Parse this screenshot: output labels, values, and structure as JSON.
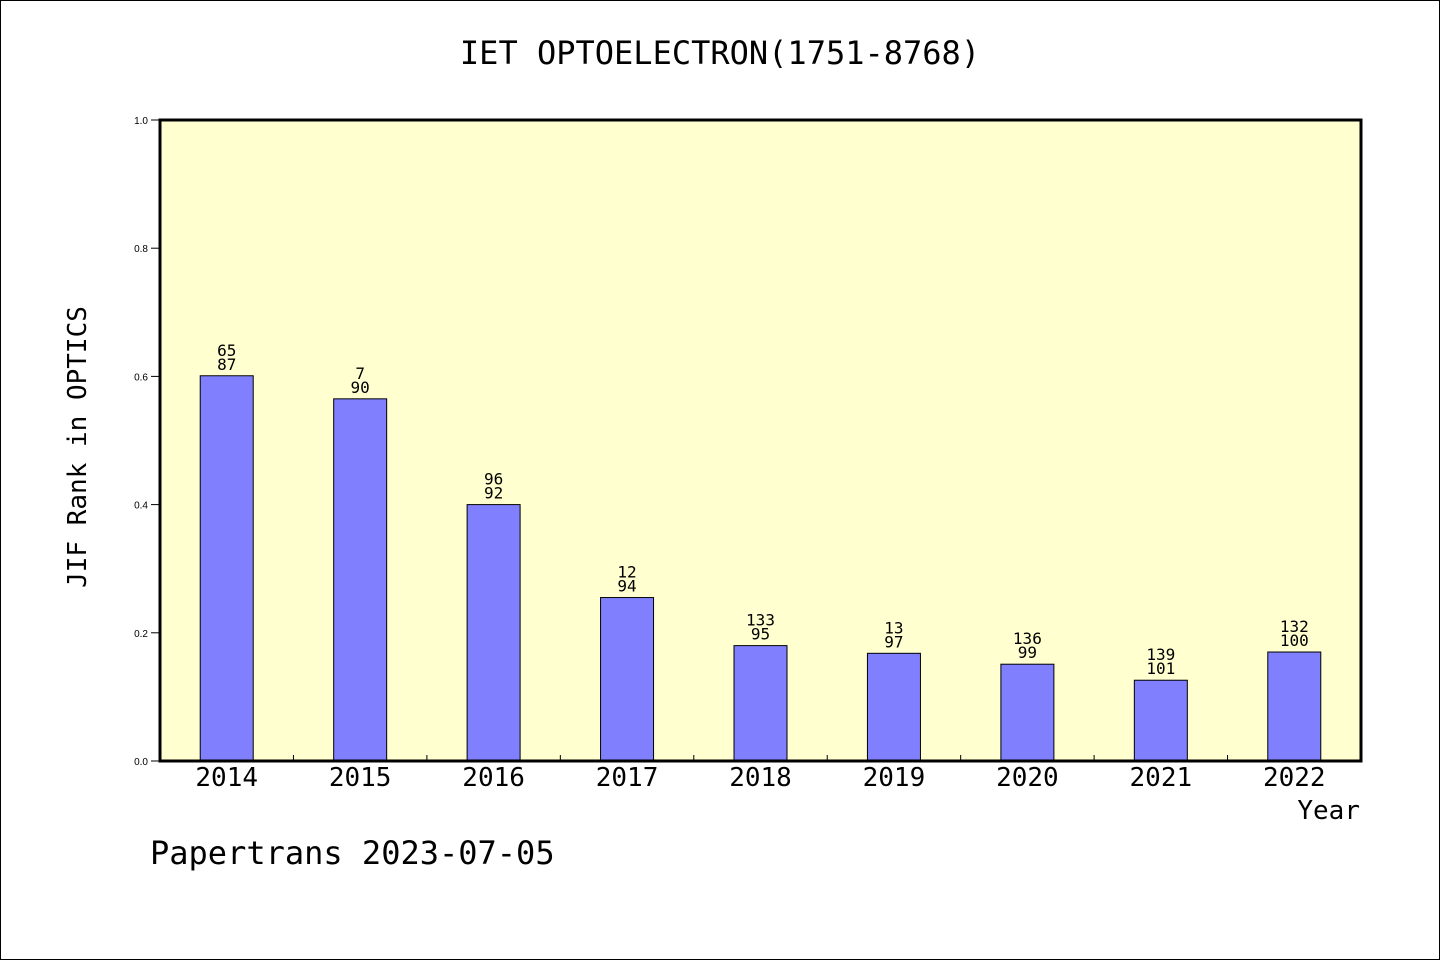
{
  "chart_data": {
    "type": "bar",
    "title": "IET OPTOELECTRON(1751-8768)",
    "xlabel": "Year",
    "ylabel": "JIF Rank in OPTICS",
    "ylim": [
      0.0,
      1.0
    ],
    "yticks": [
      "0.0",
      "0.2",
      "0.4",
      "0.6",
      "0.8",
      "1.0"
    ],
    "categories": [
      "2014",
      "2015",
      "2016",
      "2017",
      "2018",
      "2019",
      "2020",
      "2021",
      "2022"
    ],
    "values": [
      0.601,
      0.565,
      0.4,
      0.255,
      0.18,
      0.168,
      0.151,
      0.126,
      0.17
    ],
    "labels_top": [
      "65",
      "7",
      "96",
      "12",
      "133",
      "13",
      "136",
      "139",
      "132"
    ],
    "labels_bottom": [
      "87",
      "90",
      "92",
      "94",
      "95",
      "97",
      "99",
      "101",
      "100"
    ],
    "plot_background": "#ffffd0",
    "bar_color": "#8080ff",
    "grid": false,
    "legend": "none"
  },
  "footer": "Papertrans 2023-07-05"
}
